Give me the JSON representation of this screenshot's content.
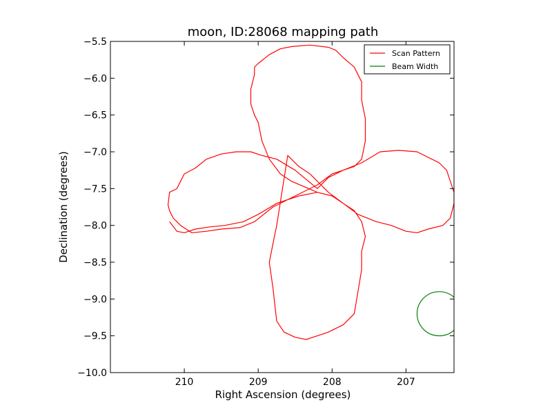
{
  "chart_data": {
    "type": "line",
    "title": "moon, ID:28068 mapping path",
    "xlabel": "Right Ascension (degrees)",
    "ylabel": "Declination (degrees)",
    "xlim": [
      211.0,
      206.35
    ],
    "ylim": [
      -10.0,
      -5.5
    ],
    "x_ticks": [
      210,
      209,
      208,
      207
    ],
    "x_tick_labels": [
      "210",
      "209",
      "208",
      "207"
    ],
    "y_ticks": [
      -5.5,
      -6.0,
      -6.5,
      -7.0,
      -7.5,
      -8.0,
      -8.5,
      -9.0,
      -9.5,
      -10.0
    ],
    "y_tick_labels": [
      "−5.5",
      "−6.0",
      "−6.5",
      "−7.0",
      "−7.5",
      "−8.0",
      "−8.5",
      "−9.0",
      "−9.5",
      "−10.0"
    ],
    "grid": false,
    "legend_position": "top-right",
    "series": [
      {
        "name": "Scan Pattern",
        "color": "#ff0000",
        "x": [
          208.2,
          208.55,
          208.7,
          208.85,
          208.95,
          209.0,
          209.05,
          209.1,
          209.1,
          209.05,
          209.05,
          209.0,
          208.85,
          208.7,
          208.55,
          208.3,
          208.05,
          207.95,
          207.85,
          207.7,
          207.6,
          207.6,
          207.55,
          207.55,
          207.6,
          207.7,
          207.85,
          208.0,
          208.2,
          208.5,
          208.8,
          209.05,
          209.25,
          209.5,
          209.7,
          209.9,
          210.05,
          210.15,
          210.2,
          210.22,
          210.2,
          210.1,
          210.0,
          209.85,
          209.7,
          209.5,
          209.3,
          209.1,
          208.95,
          208.75,
          208.5,
          208.2,
          208.05,
          207.85,
          207.6,
          207.35,
          207.1,
          206.85,
          206.55,
          206.45,
          206.4,
          206.35,
          206.35,
          206.4,
          206.5,
          206.7,
          206.85,
          207.0,
          207.2,
          207.4,
          207.65,
          207.85,
          208.05,
          208.3,
          208.45,
          208.6,
          208.75,
          208.8,
          208.85,
          208.8,
          208.75,
          208.65,
          208.5,
          208.35,
          208.2,
          208.05,
          207.85,
          207.7,
          207.65,
          207.6,
          207.6,
          207.55,
          207.6,
          207.7,
          207.85,
          208.0,
          208.2,
          208.45,
          208.75,
          209.0,
          209.2,
          209.45,
          209.65,
          209.85,
          210.0,
          210.1,
          210.2
        ],
        "y": [
          -7.55,
          -7.4,
          -7.3,
          -7.1,
          -6.85,
          -6.6,
          -6.5,
          -6.35,
          -6.15,
          -5.95,
          -5.85,
          -5.8,
          -5.68,
          -5.6,
          -5.57,
          -5.55,
          -5.58,
          -5.62,
          -5.72,
          -5.85,
          -6.05,
          -6.3,
          -6.55,
          -6.85,
          -7.1,
          -7.2,
          -7.25,
          -7.3,
          -7.45,
          -7.6,
          -7.75,
          -7.95,
          -8.03,
          -8.05,
          -8.08,
          -8.1,
          -8.0,
          -7.9,
          -7.8,
          -7.72,
          -7.55,
          -7.5,
          -7.3,
          -7.22,
          -7.1,
          -7.03,
          -7.0,
          -7.0,
          -7.05,
          -7.1,
          -7.25,
          -7.5,
          -7.35,
          -7.25,
          -7.15,
          -7.0,
          -6.98,
          -7.0,
          -7.15,
          -7.25,
          -7.4,
          -7.55,
          -7.7,
          -7.9,
          -8.0,
          -8.05,
          -8.1,
          -8.08,
          -8.0,
          -7.95,
          -7.85,
          -7.7,
          -7.55,
          -7.3,
          -7.2,
          -7.05,
          -8.0,
          -8.25,
          -8.5,
          -8.85,
          -9.3,
          -9.45,
          -9.52,
          -9.55,
          -9.5,
          -9.45,
          -9.35,
          -9.2,
          -8.9,
          -8.6,
          -8.35,
          -8.15,
          -7.95,
          -7.8,
          -7.7,
          -7.6,
          -7.55,
          -7.6,
          -7.7,
          -7.85,
          -7.95,
          -8.0,
          -8.02,
          -8.05,
          -8.1,
          -8.08,
          -7.95
        ]
      },
      {
        "name": "Beam Width",
        "color": "#008000",
        "shape": "circle",
        "center": [
          206.55,
          -9.2
        ],
        "radius_deg": 0.3
      }
    ]
  }
}
